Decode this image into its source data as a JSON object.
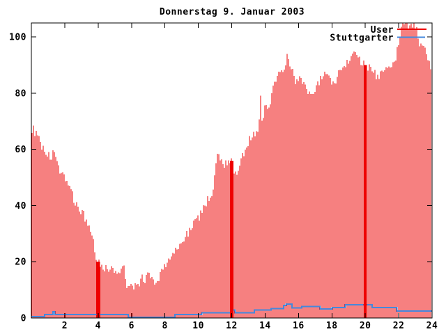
{
  "chart_data": {
    "type": "bar",
    "title": "Donnerstag 9. Januar 2003",
    "background_color": "#ffffff",
    "frame_color": "#000000",
    "grid": false,
    "legend_position": "top-right",
    "x_axis": {
      "label": "",
      "unit": "hour of day",
      "range": [
        0,
        24
      ],
      "ticks": [
        2,
        4,
        6,
        8,
        10,
        12,
        14,
        16,
        18,
        20,
        22,
        24
      ]
    },
    "y_axis": {
      "label": "",
      "range": [
        0,
        105
      ],
      "ticks": [
        0,
        20,
        40,
        60,
        80,
        100
      ]
    },
    "legend": [
      {
        "label": "User",
        "color": "#ee0000"
      },
      {
        "label": "Stuttgarter",
        "color": "#4488dd"
      }
    ],
    "series": [
      {
        "name": "User",
        "style": "impulses",
        "color": "#ee0000",
        "samples_per_hour": 12,
        "envelope": [
          [
            0.04,
            67.5
          ],
          [
            0.25,
            66
          ],
          [
            0.4,
            64
          ],
          [
            0.6,
            61.5
          ],
          [
            0.8,
            59.5
          ],
          [
            1.0,
            58
          ],
          [
            1.2,
            57
          ],
          [
            1.3,
            59
          ],
          [
            1.5,
            55
          ],
          [
            1.75,
            52.5
          ],
          [
            2.0,
            50.5
          ],
          [
            2.2,
            47.5
          ],
          [
            2.4,
            44.5
          ],
          [
            2.6,
            41.5
          ],
          [
            2.8,
            39.5
          ],
          [
            3.0,
            37.5
          ],
          [
            3.05,
            39.5
          ],
          [
            3.2,
            35
          ],
          [
            3.35,
            33
          ],
          [
            3.5,
            31.5
          ],
          [
            3.65,
            28.5
          ],
          [
            3.8,
            24
          ],
          [
            3.9,
            21.5
          ],
          [
            4.0,
            20
          ],
          [
            4.15,
            19
          ],
          [
            4.3,
            18
          ],
          [
            4.5,
            17.5
          ],
          [
            4.65,
            17
          ],
          [
            4.8,
            17.5
          ],
          [
            4.95,
            16.5
          ],
          [
            5.1,
            16
          ],
          [
            5.25,
            16.5
          ],
          [
            5.4,
            18.5
          ],
          [
            5.55,
            18.5
          ],
          [
            5.7,
            12
          ],
          [
            5.85,
            10.5
          ],
          [
            6.0,
            11
          ],
          [
            6.15,
            11.5
          ],
          [
            6.3,
            10.5
          ],
          [
            6.45,
            11
          ],
          [
            6.55,
            15
          ],
          [
            6.7,
            13.5
          ],
          [
            6.85,
            14
          ],
          [
            7.0,
            15.5
          ],
          [
            7.15,
            14
          ],
          [
            7.3,
            12.5
          ],
          [
            7.45,
            13.5
          ],
          [
            7.6,
            12.5
          ],
          [
            7.75,
            17
          ],
          [
            7.9,
            18.5
          ],
          [
            8.1,
            19.5
          ],
          [
            8.3,
            20.5
          ],
          [
            8.5,
            23
          ],
          [
            8.7,
            24.5
          ],
          [
            8.9,
            25.5
          ],
          [
            9.1,
            27.5
          ],
          [
            9.3,
            30
          ],
          [
            9.5,
            31.5
          ],
          [
            9.7,
            33.5
          ],
          [
            9.9,
            35
          ],
          [
            10.1,
            36.5
          ],
          [
            10.3,
            39.5
          ],
          [
            10.5,
            41.5
          ],
          [
            10.7,
            43.5
          ],
          [
            10.9,
            45.5
          ],
          [
            11.0,
            52
          ],
          [
            11.1,
            58
          ],
          [
            11.2,
            57
          ],
          [
            11.35,
            55.5
          ],
          [
            11.5,
            54
          ],
          [
            11.6,
            56
          ],
          [
            11.75,
            55
          ],
          [
            11.9,
            54.5
          ],
          [
            12.0,
            56
          ],
          [
            12.1,
            50.5
          ],
          [
            12.25,
            51
          ],
          [
            12.4,
            54
          ],
          [
            12.55,
            57
          ],
          [
            12.7,
            58.5
          ],
          [
            12.85,
            62
          ],
          [
            13.0,
            63
          ],
          [
            13.15,
            64.5
          ],
          [
            13.3,
            65.5
          ],
          [
            13.45,
            66.5
          ],
          [
            13.6,
            66.5
          ],
          [
            13.7,
            80
          ],
          [
            13.8,
            71
          ],
          [
            13.95,
            74.5
          ],
          [
            14.1,
            75.5
          ],
          [
            14.25,
            76
          ],
          [
            14.4,
            81
          ],
          [
            14.55,
            83.5
          ],
          [
            14.7,
            85.5
          ],
          [
            14.85,
            87.5
          ],
          [
            15.0,
            88.5
          ],
          [
            15.15,
            90
          ],
          [
            15.3,
            93.5
          ],
          [
            15.45,
            91
          ],
          [
            15.6,
            88
          ],
          [
            15.75,
            85
          ],
          [
            15.9,
            84
          ],
          [
            16.05,
            86.5
          ],
          [
            16.2,
            84.5
          ],
          [
            16.35,
            83
          ],
          [
            16.5,
            80.5
          ],
          [
            16.65,
            79
          ],
          [
            16.8,
            80.5
          ],
          [
            16.95,
            82
          ],
          [
            17.1,
            83.5
          ],
          [
            17.25,
            84.5
          ],
          [
            17.4,
            86
          ],
          [
            17.55,
            86.5
          ],
          [
            17.7,
            85.5
          ],
          [
            17.85,
            85
          ],
          [
            18.0,
            83.5
          ],
          [
            18.15,
            84
          ],
          [
            18.3,
            86.5
          ],
          [
            18.45,
            88
          ],
          [
            18.6,
            89
          ],
          [
            18.75,
            90.5
          ],
          [
            18.9,
            91.5
          ],
          [
            19.05,
            92.5
          ],
          [
            19.2,
            94
          ],
          [
            19.3,
            96.5
          ],
          [
            19.45,
            94
          ],
          [
            19.6,
            92
          ],
          [
            19.75,
            91
          ],
          [
            19.9,
            90.5
          ],
          [
            20.0,
            90
          ],
          [
            20.15,
            89.5
          ],
          [
            20.3,
            89
          ],
          [
            20.45,
            88
          ],
          [
            20.6,
            86.5
          ],
          [
            20.75,
            85.5
          ],
          [
            20.9,
            87
          ],
          [
            21.05,
            88.5
          ],
          [
            21.2,
            89.5
          ],
          [
            21.35,
            88.5
          ],
          [
            21.5,
            89
          ],
          [
            21.65,
            90.5
          ],
          [
            21.8,
            91.5
          ],
          [
            21.9,
            96
          ],
          [
            22.0,
            98.5
          ],
          [
            22.1,
            103.5
          ],
          [
            22.3,
            104
          ],
          [
            22.5,
            104.5
          ],
          [
            22.7,
            104
          ],
          [
            22.9,
            104.5
          ],
          [
            23.05,
            103.5
          ],
          [
            23.2,
            97.5
          ],
          [
            23.35,
            96
          ],
          [
            23.5,
            95.5
          ],
          [
            23.6,
            95
          ],
          [
            23.75,
            90.5
          ],
          [
            23.9,
            90
          ],
          [
            24.0,
            90
          ]
        ],
        "solid_spikes": [
          {
            "hour": 4,
            "value": 20
          },
          {
            "hour": 12,
            "value": 56
          },
          {
            "hour": 20,
            "value": 90
          }
        ]
      },
      {
        "name": "Stuttgarter",
        "style": "steps",
        "color": "#4488dd",
        "points": [
          [
            0,
            0.5
          ],
          [
            0.8,
            1.3
          ],
          [
            1.3,
            2.2
          ],
          [
            1.4,
            1.3
          ],
          [
            5.8,
            0.3
          ],
          [
            8.6,
            1.2
          ],
          [
            10.2,
            1.9
          ],
          [
            12.05,
            2.8
          ],
          [
            12.2,
            1.9
          ],
          [
            13.35,
            2.9
          ],
          [
            14.35,
            3.3
          ],
          [
            15.1,
            4.4
          ],
          [
            15.25,
            5.0
          ],
          [
            15.6,
            3.6
          ],
          [
            16.2,
            4.1
          ],
          [
            17.3,
            3.2
          ],
          [
            18.0,
            3.7
          ],
          [
            18.8,
            4.7
          ],
          [
            20.4,
            3.7
          ],
          [
            21.9,
            2.5
          ],
          [
            24,
            2.5
          ]
        ]
      }
    ]
  }
}
